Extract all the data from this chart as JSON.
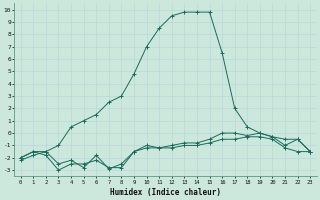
{
  "title": "",
  "xlabel": "Humidex (Indice chaleur)",
  "ylabel": "",
  "bg_color": "#cce8dd",
  "grid_color": "#aacccc",
  "line_color": "#1a6b5a",
  "ylim": [
    -3.5,
    10.5
  ],
  "xlim": [
    -0.5,
    23.5
  ],
  "yticks": [
    -3,
    -2,
    -1,
    0,
    1,
    2,
    3,
    4,
    5,
    6,
    7,
    8,
    9,
    10
  ],
  "xticks": [
    0,
    1,
    2,
    3,
    4,
    5,
    6,
    7,
    8,
    9,
    10,
    11,
    12,
    13,
    14,
    15,
    16,
    17,
    18,
    19,
    20,
    21,
    22,
    23
  ],
  "line1_x": [
    0,
    1,
    2,
    3,
    4,
    5,
    6,
    7,
    8,
    9,
    10,
    11,
    12,
    13,
    14,
    15,
    16,
    17,
    18,
    19,
    20,
    21,
    22,
    23
  ],
  "line1_y": [
    -2.0,
    -1.5,
    -1.8,
    -3.0,
    -2.5,
    -2.5,
    -2.2,
    -2.8,
    -2.8,
    -1.5,
    -1.2,
    -1.2,
    -1.2,
    -1.0,
    -1.0,
    -0.8,
    -0.5,
    -0.5,
    -0.3,
    -0.3,
    -0.5,
    -1.2,
    -1.5,
    -1.5
  ],
  "line2_x": [
    0,
    1,
    2,
    3,
    4,
    5,
    6,
    7,
    8,
    9,
    10,
    11,
    12,
    13,
    14,
    15,
    16,
    17,
    18,
    19,
    20,
    21,
    22,
    23
  ],
  "line2_y": [
    -2.2,
    -1.8,
    -1.5,
    -2.5,
    -2.2,
    -2.8,
    -1.8,
    -2.9,
    -2.5,
    -1.5,
    -1.0,
    -1.2,
    -1.0,
    -0.8,
    -0.8,
    -0.5,
    0.0,
    0.0,
    -0.2,
    0.0,
    -0.3,
    -1.0,
    -0.5,
    -1.5
  ],
  "line3_x": [
    0,
    1,
    2,
    3,
    4,
    5,
    6,
    7,
    8,
    9,
    10,
    11,
    12,
    13,
    14,
    15,
    16,
    17,
    18,
    19,
    20,
    21,
    22,
    23
  ],
  "line3_y": [
    -2.0,
    -1.5,
    -1.5,
    -1.0,
    0.5,
    1.0,
    1.5,
    2.5,
    3.0,
    4.8,
    7.0,
    8.5,
    9.5,
    9.8,
    9.8,
    9.8,
    6.5,
    2.0,
    0.5,
    0.0,
    -0.3,
    -0.5,
    -0.5,
    -1.5
  ]
}
